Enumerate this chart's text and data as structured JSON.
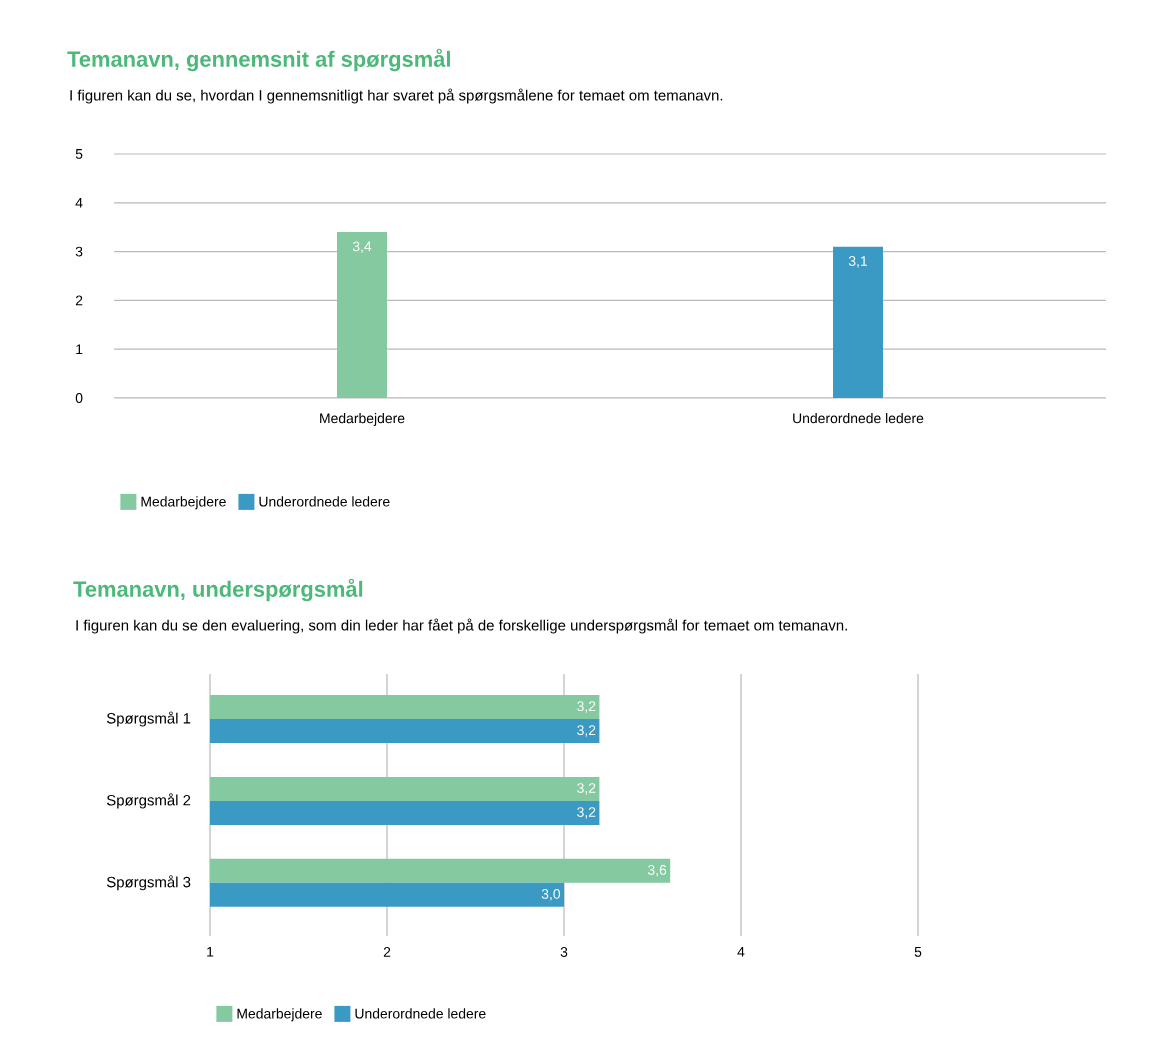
{
  "chart_data": [
    {
      "type": "bar",
      "title": "Temanavn, gennemsnit af spørgsmål",
      "subtitle": "I figuren kan du se, hvordan I gennemsnitligt har svaret på spørgsmålene for temaet om temanavn.",
      "categories": [
        "Medarbejdere",
        "Underordnede ledere"
      ],
      "series": [
        {
          "name": "Medarbejdere",
          "color": "#85c9a0",
          "values": [
            3.4,
            null
          ],
          "value_labels": [
            "3,4",
            null
          ]
        },
        {
          "name": "Underordnede ledere",
          "color": "#3a9ac4",
          "values": [
            null,
            3.1
          ],
          "value_labels": [
            null,
            "3,1"
          ]
        }
      ],
      "ylim": [
        0,
        5
      ],
      "yticks": [
        0,
        1,
        2,
        3,
        4,
        5
      ],
      "grid": "y",
      "legend": "bottom"
    },
    {
      "type": "bar",
      "orientation": "horizontal",
      "title": "Temanavn, underspørgsmål",
      "subtitle": "I figuren kan du se den evaluering, som din leder har fået på de forskellige underspørgsmål for temaet om temanavn.",
      "categories": [
        "Spørgsmål 1",
        "Spørgsmål 2",
        "Spørgsmål 3"
      ],
      "series": [
        {
          "name": "Medarbejdere",
          "color": "#85c9a0",
          "values": [
            3.2,
            3.2,
            3.6
          ],
          "value_labels": [
            "3,2",
            "3,2",
            "3,6"
          ]
        },
        {
          "name": "Underordnede ledere",
          "color": "#3a9ac4",
          "values": [
            3.2,
            3.2,
            3.0
          ],
          "value_labels": [
            "3,2",
            "3,2",
            "3,0"
          ]
        }
      ],
      "xlim": [
        1,
        5
      ],
      "xticks": [
        1,
        2,
        3,
        4,
        5
      ],
      "grid": "x",
      "legend": "bottom"
    }
  ]
}
